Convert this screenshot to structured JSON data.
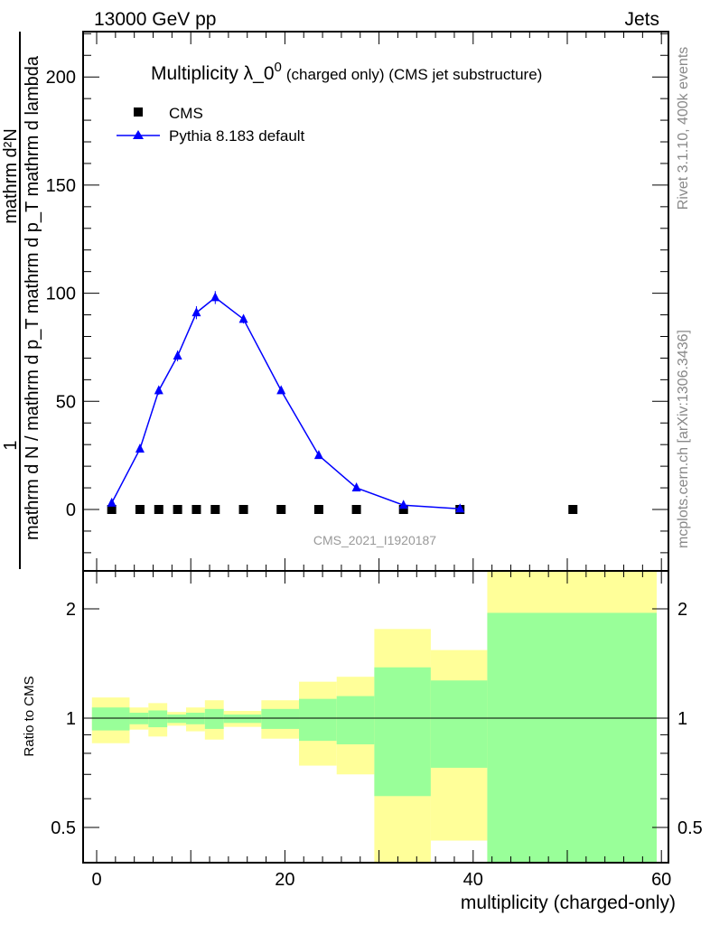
{
  "header": {
    "left": "13000 GeV pp",
    "right": "Jets"
  },
  "side_labels": {
    "rivet": "Rivet 3.1.10,  400k events",
    "mcplots": "mcplots.cern.ch [arXiv:1306.3436]"
  },
  "watermark": "CMS_2021_I1920187",
  "chart_data": [
    {
      "type": "line",
      "title": "Multiplicity λ_0⁰ (charged only) (CMS jet substructure)",
      "title_main": "Multiplicity λ_0",
      "title_sup": "0",
      "title_tail": "(charged only) (CMS jet substructure)",
      "ylabel_num": "1",
      "ylabel_den": "mathrm d N / mathrm d p_T mathrm d p_T mathrm d lambda",
      "ylabel_top": "mathrm d²N",
      "xlim": [
        -1.5,
        60.5
      ],
      "ylim": [
        -28.4,
        221
      ],
      "yticks": [
        0,
        50,
        100,
        150,
        200
      ],
      "legend": {
        "placement": "top-left",
        "entries": [
          "CMS",
          "Pythia 8.183 default"
        ]
      },
      "series": [
        {
          "name": "CMS",
          "x": [
            1.6,
            4.6,
            6.6,
            8.6,
            10.6,
            12.6,
            15.6,
            19.6,
            23.6,
            27.6,
            32.6,
            38.6,
            50.6
          ],
          "y": [
            0,
            0,
            0,
            0,
            0,
            0,
            0,
            0,
            0,
            0,
            0,
            0,
            0
          ],
          "color": "#000000"
        },
        {
          "name": "Pythia 8.183 default",
          "x": [
            1.6,
            4.6,
            6.6,
            8.6,
            10.6,
            12.6,
            15.6,
            19.6,
            23.6,
            27.6,
            32.6,
            38.6
          ],
          "y": [
            3,
            28,
            55,
            71,
            91,
            98,
            88,
            55,
            25,
            10,
            2,
            0.3
          ],
          "err": [
            1,
            1.5,
            2,
            2.5,
            3,
            3,
            2,
            1.5,
            1,
            0.7,
            0.3,
            0.1
          ],
          "color": "#0000ff"
        }
      ]
    },
    {
      "type": "area",
      "ylabel": "Ratio to CMS",
      "xlabel": "multiplicity (charged-only)",
      "xticks": [
        0,
        20,
        40,
        60
      ],
      "yticks": [
        0.5,
        1,
        2
      ],
      "yscale": "log",
      "ylim": [
        0.4,
        2.54
      ],
      "bin_edges": [
        -0.5,
        3.5,
        5.5,
        7.5,
        9.5,
        11.5,
        13.5,
        17.5,
        21.5,
        25.5,
        29.5,
        35.5,
        41.5,
        59.5
      ],
      "yellow_hi": [
        1.14,
        1.07,
        1.1,
        1.04,
        1.07,
        1.12,
        1.047,
        1.12,
        1.26,
        1.3,
        1.76,
        1.54,
        3.0
      ],
      "yellow_lo": [
        0.853,
        0.93,
        0.89,
        0.953,
        0.92,
        0.873,
        0.946,
        0.878,
        0.74,
        0.7,
        0.3,
        0.46,
        0.3
      ],
      "green_hi": [
        1.07,
        1.035,
        1.05,
        1.023,
        1.035,
        1.06,
        1.023,
        1.06,
        1.13,
        1.15,
        1.38,
        1.27,
        1.95
      ],
      "green_lo": [
        0.925,
        0.962,
        0.944,
        0.97,
        0.962,
        0.934,
        0.97,
        0.934,
        0.866,
        0.847,
        0.61,
        0.73,
        0.3
      ],
      "colors": {
        "yellow": "#ffff99",
        "green": "#99ff99"
      }
    }
  ]
}
